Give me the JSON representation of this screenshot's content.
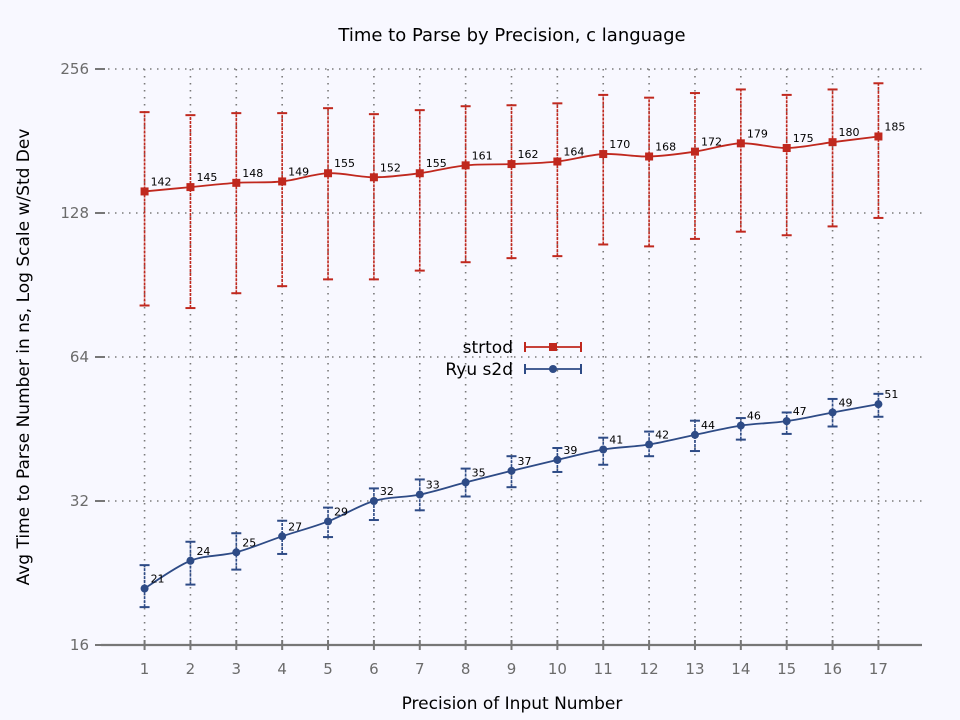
{
  "chart_data": {
    "type": "line",
    "title": "Time to Parse by Precision, c language",
    "xlabel": "Precision of Input Number",
    "ylabel": "Avg Time to Parse Number in ns, Log Scale w/Std Dev",
    "scale_y": "log2",
    "grid": true,
    "legend_position": "center",
    "x": [
      1,
      2,
      3,
      4,
      5,
      6,
      7,
      8,
      9,
      10,
      11,
      12,
      13,
      14,
      15,
      16,
      17
    ],
    "ylim": [
      16,
      256
    ],
    "yticks": [
      16,
      32,
      64,
      128,
      256
    ],
    "series": [
      {
        "name": "strtod",
        "color": "#c0281e",
        "marker": "square",
        "values": [
          142,
          145,
          148,
          149,
          155,
          152,
          155,
          161,
          162,
          164,
          170,
          168,
          172,
          179,
          175,
          180,
          185
        ],
        "err_low": [
          82,
          81,
          87,
          90,
          93,
          93,
          97,
          101,
          103,
          104,
          110,
          109,
          113,
          117,
          115,
          120,
          125
        ],
        "err_high": [
          208,
          205,
          207,
          207,
          212,
          206,
          210,
          214,
          215,
          217,
          226,
          223,
          228,
          232,
          226,
          232,
          239
        ]
      },
      {
        "name": "Ryu s2d",
        "color": "#2e4b86",
        "marker": "circle",
        "values": [
          21,
          24,
          25,
          27,
          29,
          32,
          33,
          35,
          37,
          39,
          41,
          42,
          44,
          46,
          47,
          49,
          51
        ],
        "err_low": [
          19.2,
          21.4,
          23.0,
          24.8,
          26.9,
          29.2,
          30.6,
          32.7,
          34.2,
          36.8,
          38.1,
          39.7,
          40.7,
          43.0,
          44.2,
          45.8,
          48.0
        ],
        "err_high": [
          23.5,
          26.3,
          27.4,
          29.1,
          31.0,
          34.0,
          35.5,
          37.4,
          39.7,
          41.3,
          43.4,
          44.7,
          47.1,
          47.7,
          49.0,
          52.3,
          53.6
        ]
      }
    ]
  }
}
